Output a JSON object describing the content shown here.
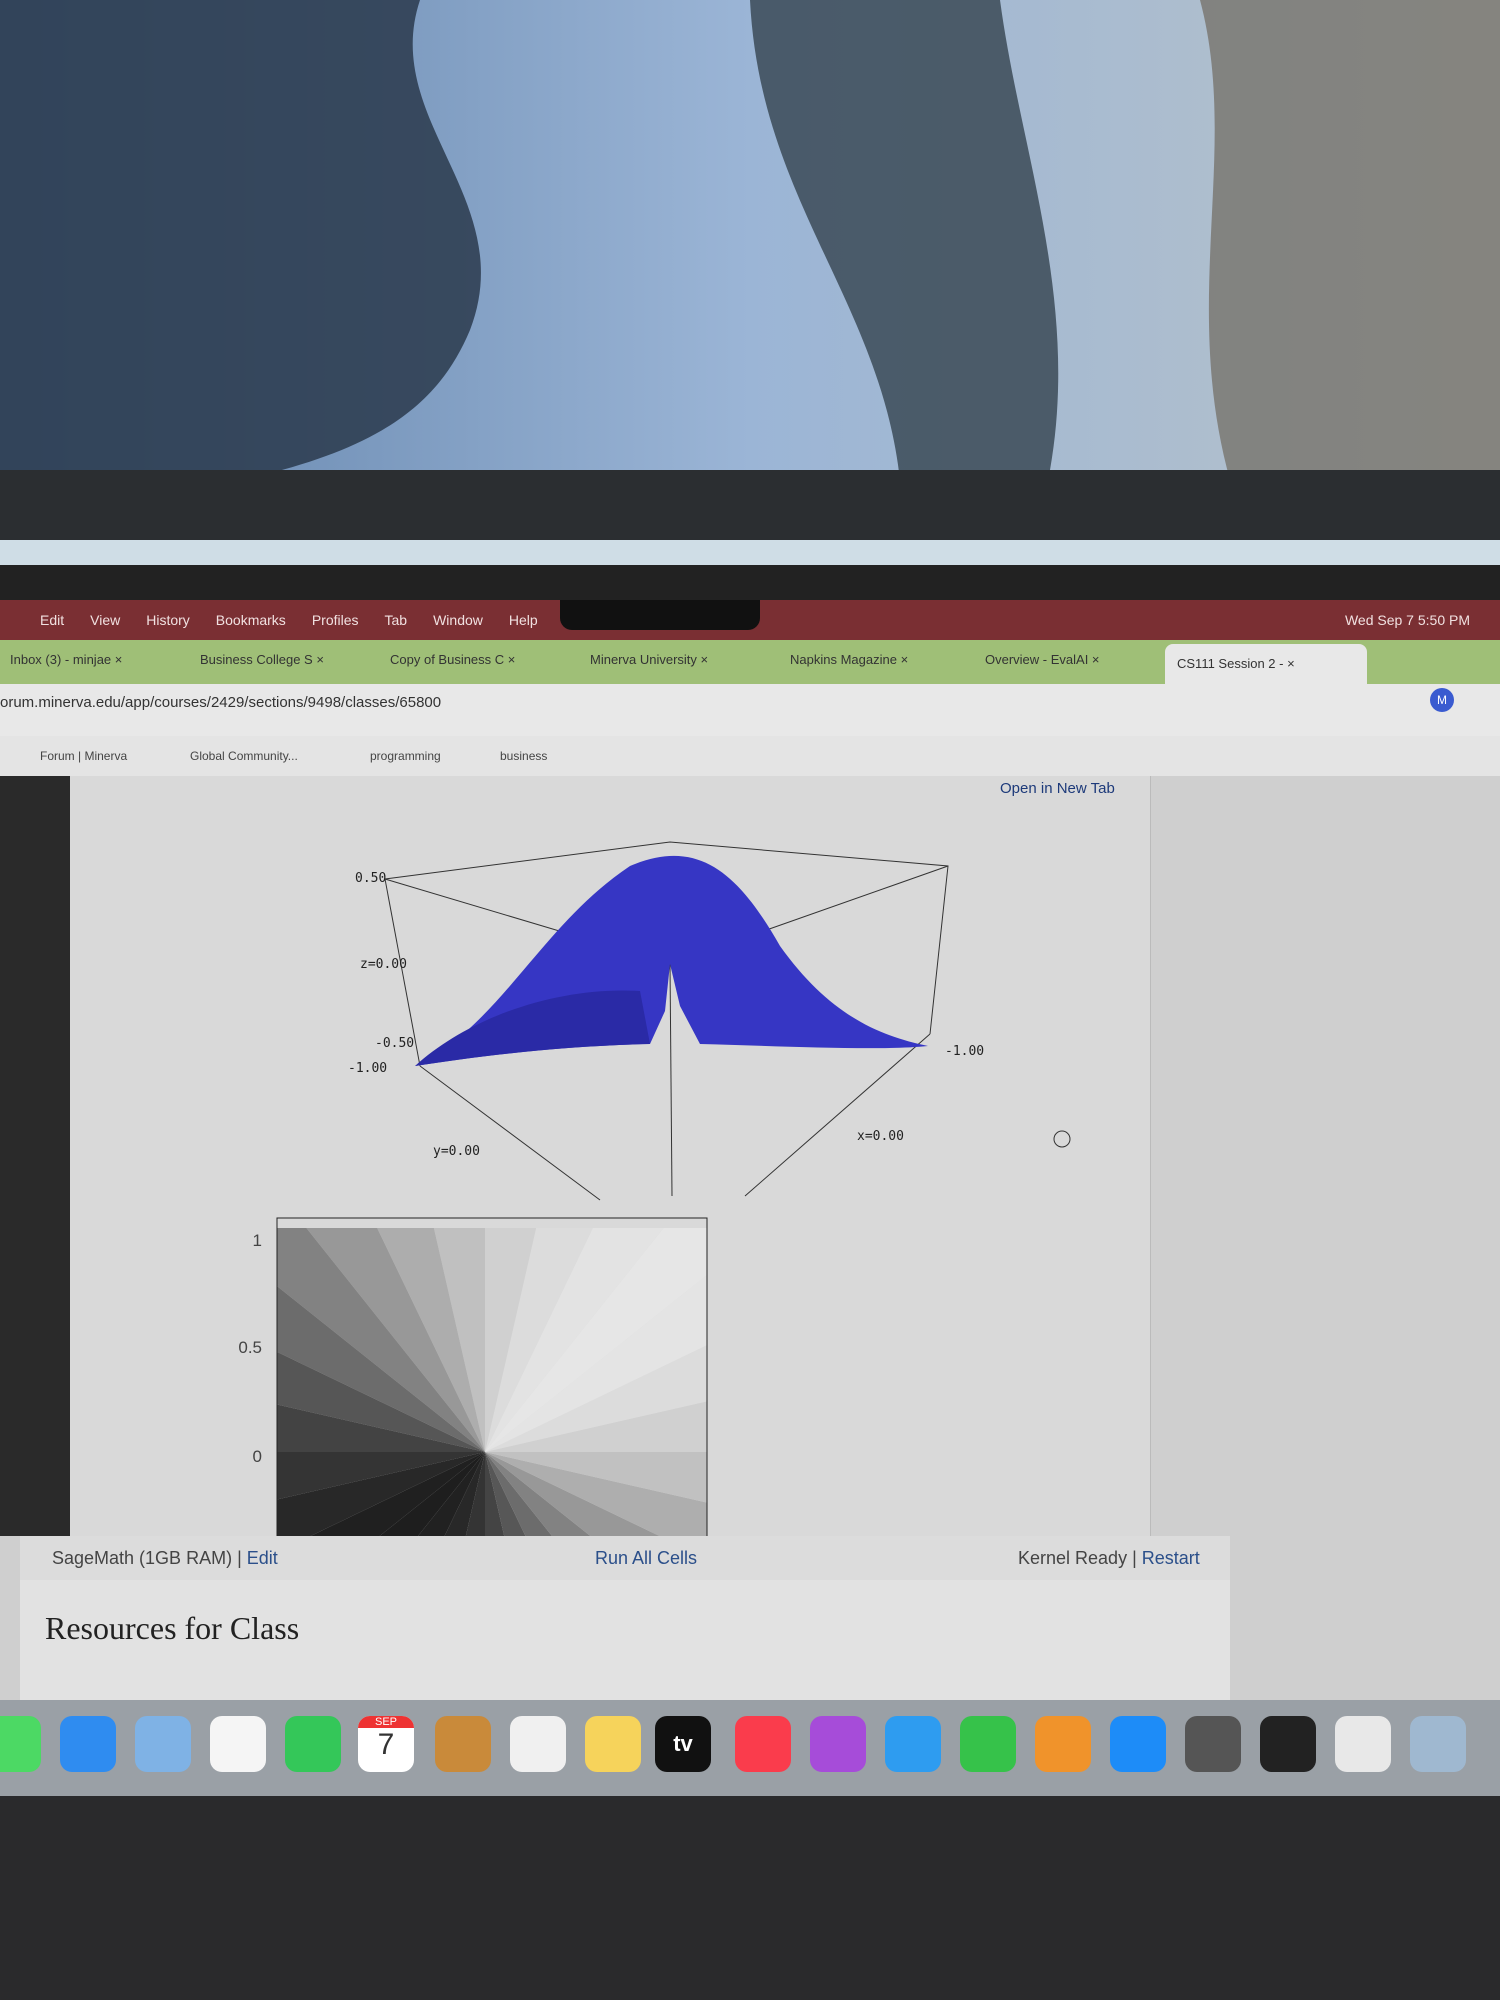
{
  "menu_bar": {
    "items": [
      "Edit",
      "View",
      "History",
      "Bookmarks",
      "Profiles",
      "Tab",
      "Window",
      "Help"
    ],
    "clock": "Wed Sep 7  5:50 PM"
  },
  "tabs": [
    "Inbox (3) - minjae",
    "Business College S",
    "Copy of Business C",
    "Minerva University",
    "Napkins Magazine",
    "Overview - EvalAI",
    "CS111 Session 2 - "
  ],
  "address": "orum.minerva.edu/app/courses/2429/sections/9498/classes/65800",
  "profile": "M",
  "bookmarks": [
    "Forum | Minerva",
    "Global Community...",
    "programming",
    "business"
  ],
  "notebook": {
    "open_link": "Open in New Tab",
    "plot3d": {
      "labels": [
        "0.50",
        "z=0.00",
        "-0.50",
        "-1.00",
        "-1.00",
        "y=0.00",
        "x=0.00"
      ]
    },
    "plot2d": {
      "ticks": [
        "1",
        "0.5",
        "0"
      ]
    },
    "footer": {
      "engine": "SageMath (1GB RAM)",
      "edit": "Edit",
      "run": "Run All Cells",
      "status": "Kernel Ready",
      "restart": "Restart"
    }
  },
  "heading": "Resources for Class",
  "dock": {
    "calendar_month": "SEP",
    "calendar_day": "7",
    "tv": "tv"
  }
}
